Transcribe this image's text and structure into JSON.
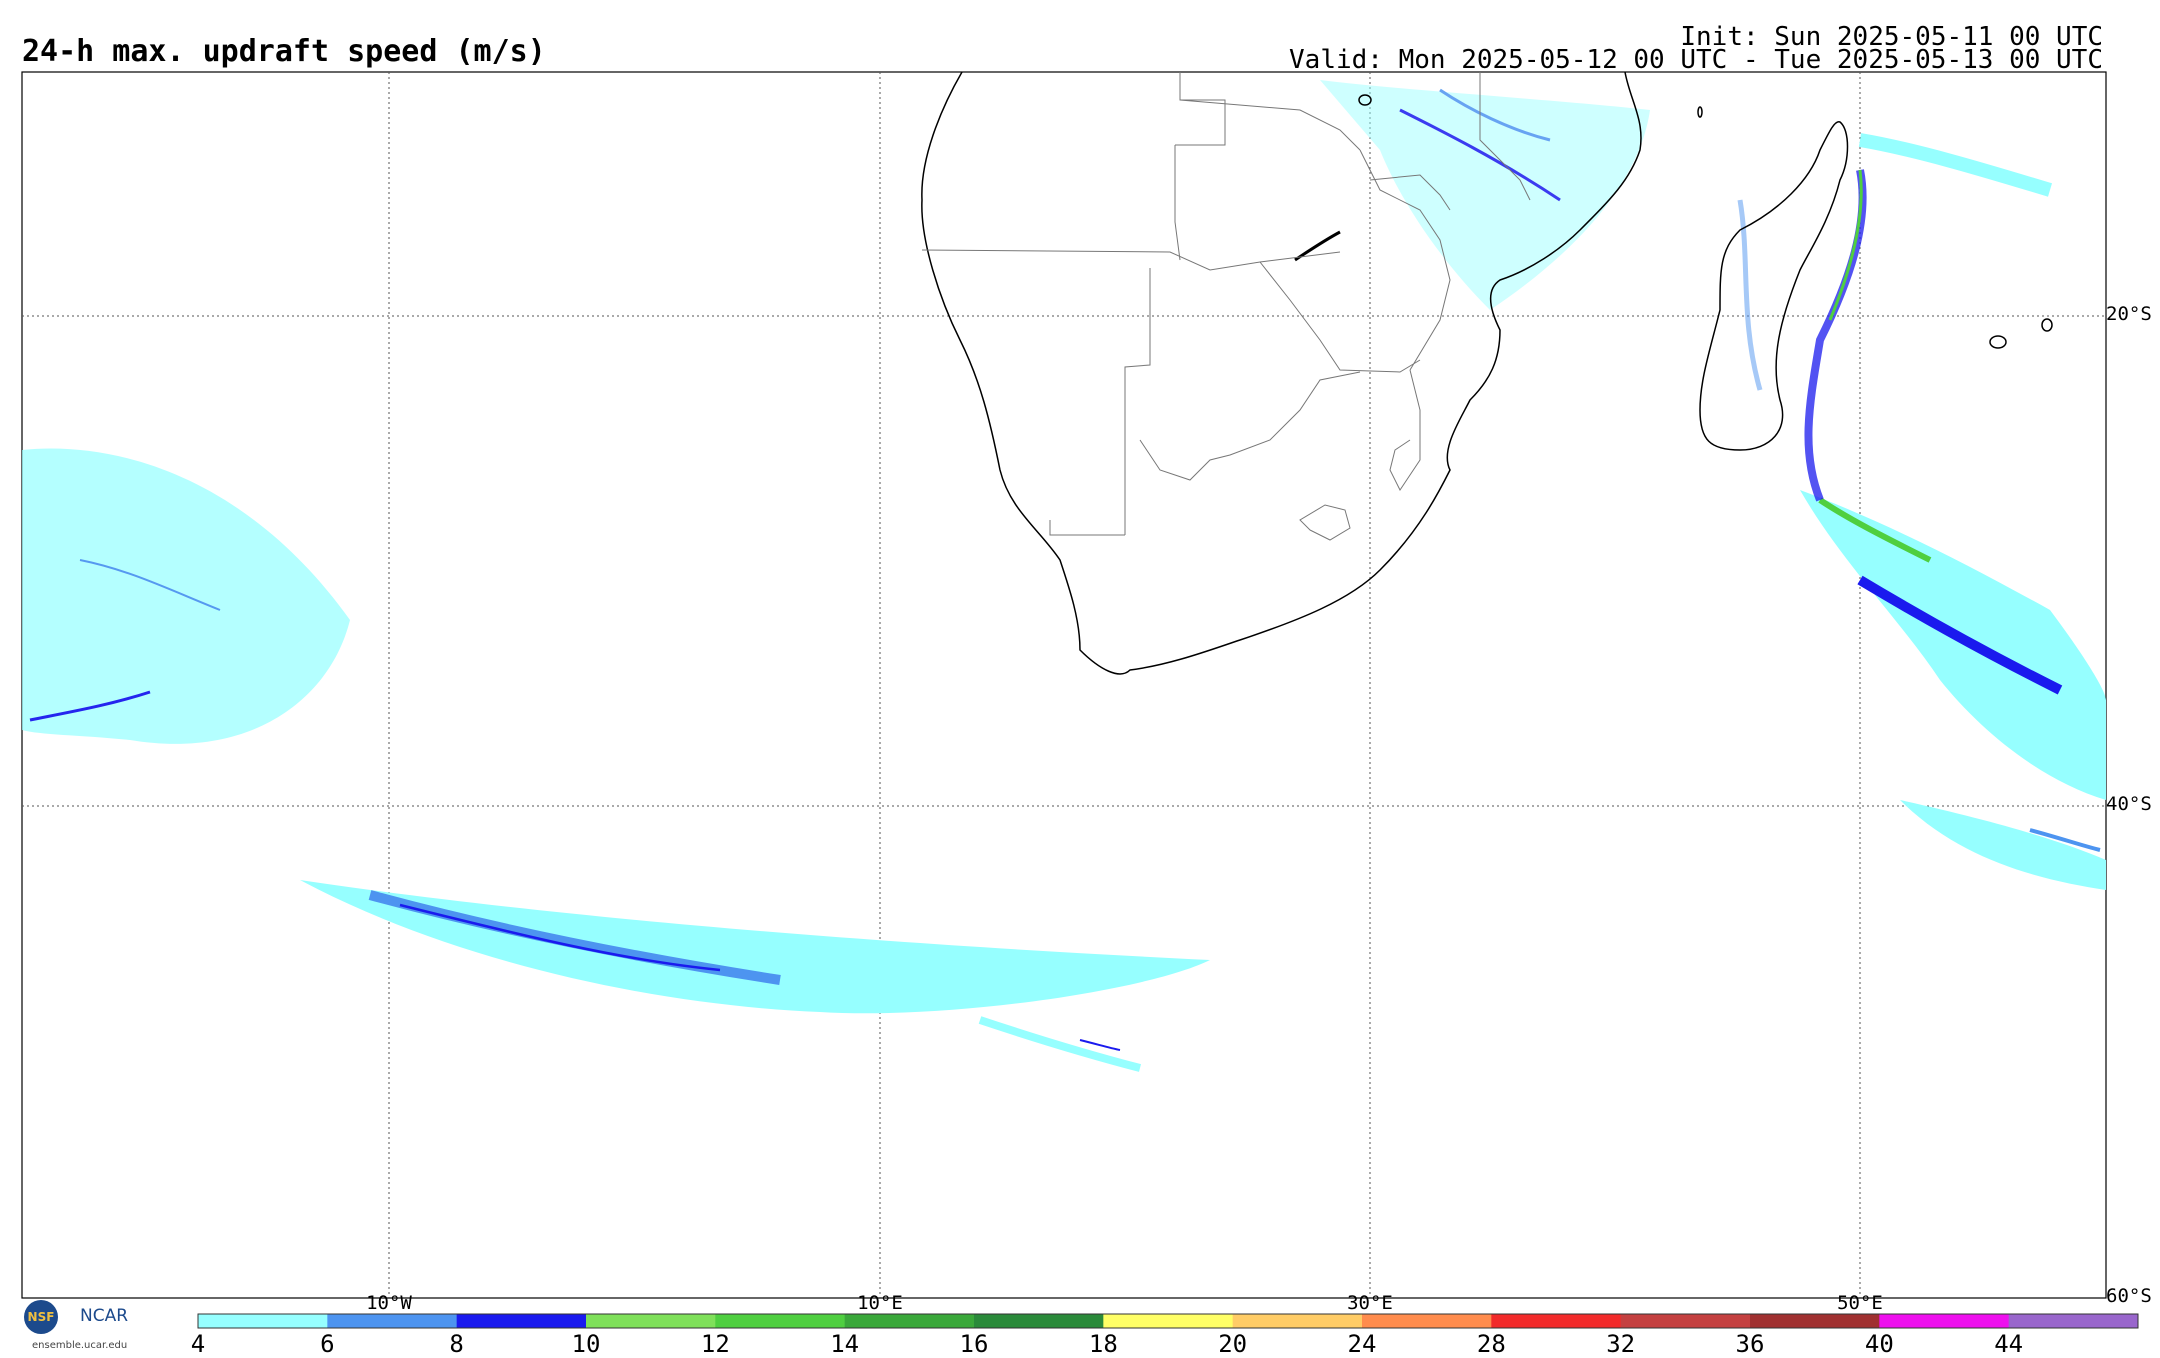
{
  "header": {
    "title": "24-h max. updraft speed (m/s)",
    "init": "Init: Sun 2025-05-11 00 UTC",
    "valid": "Valid: Mon 2025-05-12 00 UTC - Tue 2025-05-13 00 UTC"
  },
  "map": {
    "lat_labels": [
      "20°S",
      "40°S",
      "60°S"
    ],
    "lon_labels": [
      "10°W",
      "10°E",
      "30°E",
      "50°E"
    ]
  },
  "colorbar": {
    "ticks": [
      "4",
      "6",
      "8",
      "10",
      "12",
      "14",
      "16",
      "18",
      "20",
      "24",
      "28",
      "32",
      "36",
      "40",
      "44"
    ],
    "colors": [
      "#96ffff",
      "#4d94f0",
      "#1a1aee",
      "#7fe05a",
      "#4fcf40",
      "#3aa83a",
      "#2a8a3a",
      "#ffff66",
      "#ffcc66",
      "#ff8c4d",
      "#f22a2a",
      "#c44040",
      "#a03030",
      "#ee10ee",
      "#9966cc"
    ]
  },
  "logos": {
    "nsf": "NSF",
    "ncar": "NCAR",
    "url": "ensemble.ucar.edu"
  }
}
